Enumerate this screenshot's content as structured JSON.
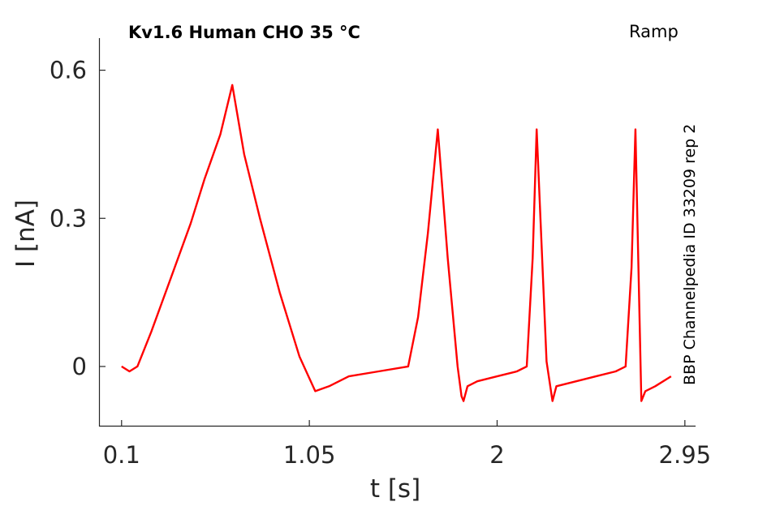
{
  "title": "Kv1.6  Human  CHO  35 °C",
  "protocol": "Ramp",
  "side_note": "BBP Channelpedia ID 33209 rep 2",
  "chart_data": {
    "type": "line",
    "xlabel": "t [s]",
    "ylabel": "I [nA]",
    "xlim": [
      -0.01,
      3.0
    ],
    "ylim": [
      -0.12,
      0.665
    ],
    "xticks": [
      0.1,
      1.05,
      2,
      2.95
    ],
    "xtick_labels": [
      "0.1",
      "1.05",
      "2",
      "2.95"
    ],
    "yticks": [
      0,
      0.3,
      0.6
    ],
    "ytick_labels": [
      "0",
      "0.3",
      "0.6"
    ],
    "grid": false,
    "series": [
      {
        "color": "#ff0000",
        "x": [
          0.1,
          0.14,
          0.18,
          0.25,
          0.35,
          0.45,
          0.52,
          0.6,
          0.66,
          0.72,
          0.8,
          0.9,
          1.0,
          1.08,
          1.15,
          1.25,
          1.4,
          1.55,
          1.6,
          1.65,
          1.7,
          1.75,
          1.8,
          1.82,
          1.83,
          1.85,
          1.9,
          2.0,
          2.1,
          2.15,
          2.18,
          2.2,
          2.25,
          2.28,
          2.3,
          2.4,
          2.5,
          2.6,
          2.65,
          2.68,
          2.7,
          2.73,
          2.75,
          2.8,
          2.88
        ],
        "y": [
          0.0,
          -0.01,
          0.0,
          0.07,
          0.18,
          0.29,
          0.38,
          0.47,
          0.57,
          0.43,
          0.3,
          0.15,
          0.02,
          -0.05,
          -0.04,
          -0.02,
          -0.01,
          0.0,
          0.1,
          0.27,
          0.48,
          0.22,
          0.0,
          -0.06,
          -0.07,
          -0.04,
          -0.03,
          -0.02,
          -0.01,
          0.0,
          0.22,
          0.48,
          0.01,
          -0.07,
          -0.04,
          -0.03,
          -0.02,
          -0.01,
          0.0,
          0.2,
          0.48,
          -0.07,
          -0.05,
          -0.04,
          -0.02
        ]
      }
    ]
  }
}
